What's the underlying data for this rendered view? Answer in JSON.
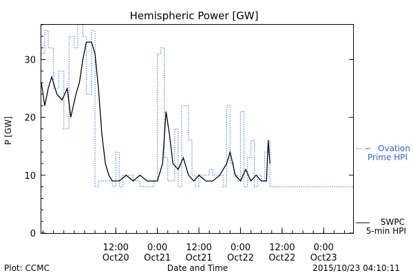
{
  "chart_data": {
    "type": "line",
    "title": "Hemispheric Power [GW]",
    "ylabel": "P [GW]",
    "xlabel": "Date and Time",
    "ylim": [
      0,
      36
    ],
    "yticks": [
      0,
      10,
      20,
      30
    ],
    "xlim": [
      "2015-10-19T14:30",
      "2015-10-23T08:30"
    ],
    "xticks": [
      {
        "t": "2015-10-20T12:00",
        "time": "12:00",
        "date": "Oct20"
      },
      {
        "t": "2015-10-21T00:00",
        "time": "0:00",
        "date": "Oct21"
      },
      {
        "t": "2015-10-21T12:00",
        "time": "12:00",
        "date": "Oct21"
      },
      {
        "t": "2015-10-22T00:00",
        "time": "0:00",
        "date": "Oct22"
      },
      {
        "t": "2015-10-22T12:00",
        "time": "12:00",
        "date": "Oct22"
      },
      {
        "t": "2015-10-23T00:00",
        "time": "0:00",
        "date": "Oct23"
      }
    ],
    "grid": false,
    "legend_position": "right",
    "series": [
      {
        "name": "Ovation Prime HPI",
        "legend_lines": [
          "Ovation",
          "Prime HPI"
        ],
        "color": "#3366cc",
        "style": "dotted-step",
        "points": [
          [
            "2015-10-19T14:30",
            31
          ],
          [
            "2015-10-19T15:30",
            35
          ],
          [
            "2015-10-19T16:30",
            32
          ],
          [
            "2015-10-19T18:00",
            25
          ],
          [
            "2015-10-19T19:30",
            28
          ],
          [
            "2015-10-19T21:00",
            18
          ],
          [
            "2015-10-19T22:30",
            34
          ],
          [
            "2015-10-20T00:00",
            32
          ],
          [
            "2015-10-20T01:00",
            36
          ],
          [
            "2015-10-20T02:30",
            34
          ],
          [
            "2015-10-20T03:30",
            24
          ],
          [
            "2015-10-20T05:00",
            35
          ],
          [
            "2015-10-20T06:00",
            8
          ],
          [
            "2015-10-20T07:00",
            9
          ],
          [
            "2015-10-20T11:00",
            8
          ],
          [
            "2015-10-20T12:00",
            14
          ],
          [
            "2015-10-20T13:00",
            8
          ],
          [
            "2015-10-20T14:00",
            10
          ],
          [
            "2015-10-20T17:00",
            9
          ],
          [
            "2015-10-20T19:00",
            8
          ],
          [
            "2015-10-20T21:00",
            8
          ],
          [
            "2015-10-20T23:00",
            9
          ],
          [
            "2015-10-21T00:00",
            31
          ],
          [
            "2015-10-21T01:00",
            32
          ],
          [
            "2015-10-21T02:00",
            13
          ],
          [
            "2015-10-21T03:00",
            9
          ],
          [
            "2015-10-21T05:00",
            18
          ],
          [
            "2015-10-21T06:00",
            8
          ],
          [
            "2015-10-21T07:00",
            22
          ],
          [
            "2015-10-21T09:00",
            16
          ],
          [
            "2015-10-21T10:00",
            10
          ],
          [
            "2015-10-21T11:00",
            8
          ],
          [
            "2015-10-21T12:00",
            10
          ],
          [
            "2015-10-21T15:00",
            11
          ],
          [
            "2015-10-21T16:00",
            10
          ],
          [
            "2015-10-21T19:00",
            8
          ],
          [
            "2015-10-21T20:00",
            22
          ],
          [
            "2015-10-21T21:00",
            12
          ],
          [
            "2015-10-21T22:00",
            10
          ],
          [
            "2015-10-21T23:00",
            9
          ],
          [
            "2015-10-22T00:00",
            21
          ],
          [
            "2015-10-22T01:00",
            8
          ],
          [
            "2015-10-22T02:00",
            13
          ],
          [
            "2015-10-22T03:00",
            16
          ],
          [
            "2015-10-22T04:00",
            8
          ],
          [
            "2015-10-22T05:00",
            10
          ],
          [
            "2015-10-22T06:00",
            9
          ],
          [
            "2015-10-22T07:00",
            14
          ],
          [
            "2015-10-22T08:00",
            16
          ],
          [
            "2015-10-22T08:30",
            8
          ]
        ]
      },
      {
        "name": "SWPC 5-min HPI",
        "legend_lines": [
          "SWPC",
          "5-min HPI"
        ],
        "color": "#000000",
        "style": "solid",
        "points": [
          [
            "2015-10-19T14:30",
            26
          ],
          [
            "2015-10-19T15:30",
            22
          ],
          [
            "2015-10-19T16:30",
            25
          ],
          [
            "2015-10-19T17:30",
            27
          ],
          [
            "2015-10-19T19:00",
            24
          ],
          [
            "2015-10-19T20:30",
            23
          ],
          [
            "2015-10-19T22:00",
            25
          ],
          [
            "2015-10-19T23:00",
            20
          ],
          [
            "2015-10-20T00:30",
            24
          ],
          [
            "2015-10-20T01:30",
            26
          ],
          [
            "2015-10-20T02:30",
            30
          ],
          [
            "2015-10-20T03:30",
            33
          ],
          [
            "2015-10-20T05:00",
            33
          ],
          [
            "2015-10-20T06:00",
            31
          ],
          [
            "2015-10-20T07:00",
            25
          ],
          [
            "2015-10-20T08:00",
            17
          ],
          [
            "2015-10-20T09:00",
            12
          ],
          [
            "2015-10-20T10:00",
            10
          ],
          [
            "2015-10-20T11:00",
            9
          ],
          [
            "2015-10-20T13:00",
            9
          ],
          [
            "2015-10-20T15:00",
            10
          ],
          [
            "2015-10-20T17:00",
            9
          ],
          [
            "2015-10-20T19:00",
            10
          ],
          [
            "2015-10-20T21:00",
            9
          ],
          [
            "2015-10-20T23:00",
            9
          ],
          [
            "2015-10-21T00:00",
            9
          ],
          [
            "2015-10-21T01:30",
            12
          ],
          [
            "2015-10-21T02:30",
            21
          ],
          [
            "2015-10-21T03:30",
            17
          ],
          [
            "2015-10-21T04:30",
            12
          ],
          [
            "2015-10-21T06:00",
            11
          ],
          [
            "2015-10-21T07:30",
            13
          ],
          [
            "2015-10-21T09:00",
            10
          ],
          [
            "2015-10-21T10:30",
            9
          ],
          [
            "2015-10-21T12:00",
            10
          ],
          [
            "2015-10-21T14:00",
            9
          ],
          [
            "2015-10-21T16:00",
            9
          ],
          [
            "2015-10-21T18:00",
            10
          ],
          [
            "2015-10-21T20:00",
            12
          ],
          [
            "2015-10-21T21:00",
            14
          ],
          [
            "2015-10-21T22:30",
            10
          ],
          [
            "2015-10-22T00:00",
            9
          ],
          [
            "2015-10-22T01:30",
            11
          ],
          [
            "2015-10-22T03:00",
            9
          ],
          [
            "2015-10-22T04:30",
            10
          ],
          [
            "2015-10-22T06:00",
            9
          ],
          [
            "2015-10-22T07:30",
            9
          ],
          [
            "2015-10-22T08:00",
            16
          ],
          [
            "2015-10-22T08:30",
            12
          ]
        ]
      }
    ]
  },
  "footer": {
    "left": "Plot: CCMC",
    "center": "Date and Time",
    "right": "2015/10/23 04:10:11"
  }
}
